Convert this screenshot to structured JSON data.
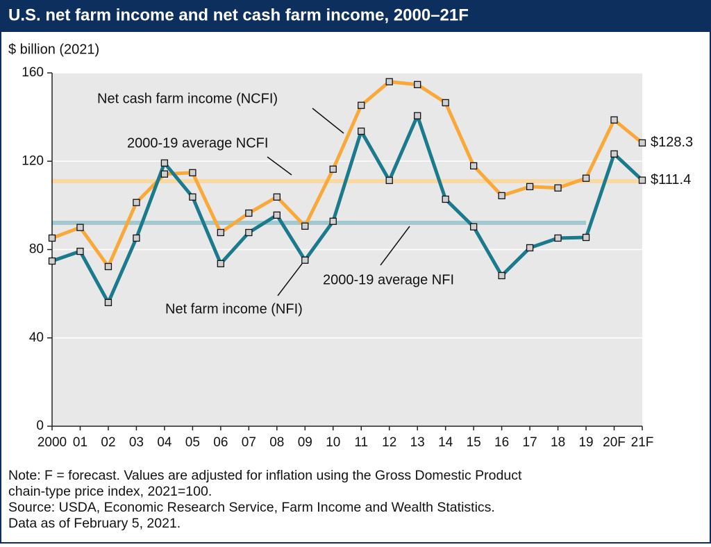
{
  "chart_data": {
    "type": "line",
    "title": "U.S. net farm income and net cash farm income, 2000–21F",
    "y_axis_label": "$ billion (2021)",
    "categories": [
      "2000",
      "01",
      "02",
      "03",
      "04",
      "05",
      "06",
      "07",
      "08",
      "09",
      "10",
      "11",
      "12",
      "13",
      "14",
      "15",
      "16",
      "17",
      "18",
      "19",
      "20F",
      "21F"
    ],
    "series": [
      {
        "name": "Net cash farm income (NCFI)",
        "color": "#f9a93a",
        "values": [
          85.2,
          90,
          72.3,
          101.3,
          114.2,
          114.8,
          87.7,
          96.5,
          103.8,
          90.6,
          116.4,
          145.3,
          156,
          154.7,
          146.5,
          117.9,
          104.4,
          108.5,
          107.9,
          112.3,
          138.7,
          128.3
        ],
        "last_value_label": "$128.3"
      },
      {
        "name": "Net farm income (NFI)",
        "color": "#1b7a8c",
        "values": [
          74.8,
          79.2,
          56,
          85.2,
          119.2,
          103.8,
          73.6,
          87.7,
          95.6,
          75.2,
          92.8,
          133.6,
          111.3,
          140.6,
          102.8,
          90.3,
          68.2,
          80.8,
          85.2,
          85.5,
          123.3,
          111.4
        ],
        "last_value_label": "$111.4"
      }
    ],
    "averages": [
      {
        "name": "2000-19 average NCFI",
        "value": 111,
        "color": "#f8d8a4"
      },
      {
        "name": "2000-19 average NFI",
        "value": 92.1,
        "color": "#a2c8d0"
      }
    ],
    "ylim": [
      0,
      160
    ],
    "yticks": [
      0,
      40,
      80,
      120,
      160
    ],
    "grid": true,
    "notes": [
      "Note: F = forecast. Values are adjusted for inflation using the Gross Domestic Product",
      "chain-type price index, 2021=100.",
      "Source: USDA, Economic Research Service, Farm Income and Wealth Statistics.",
      "Data as of February 5, 2021."
    ]
  }
}
